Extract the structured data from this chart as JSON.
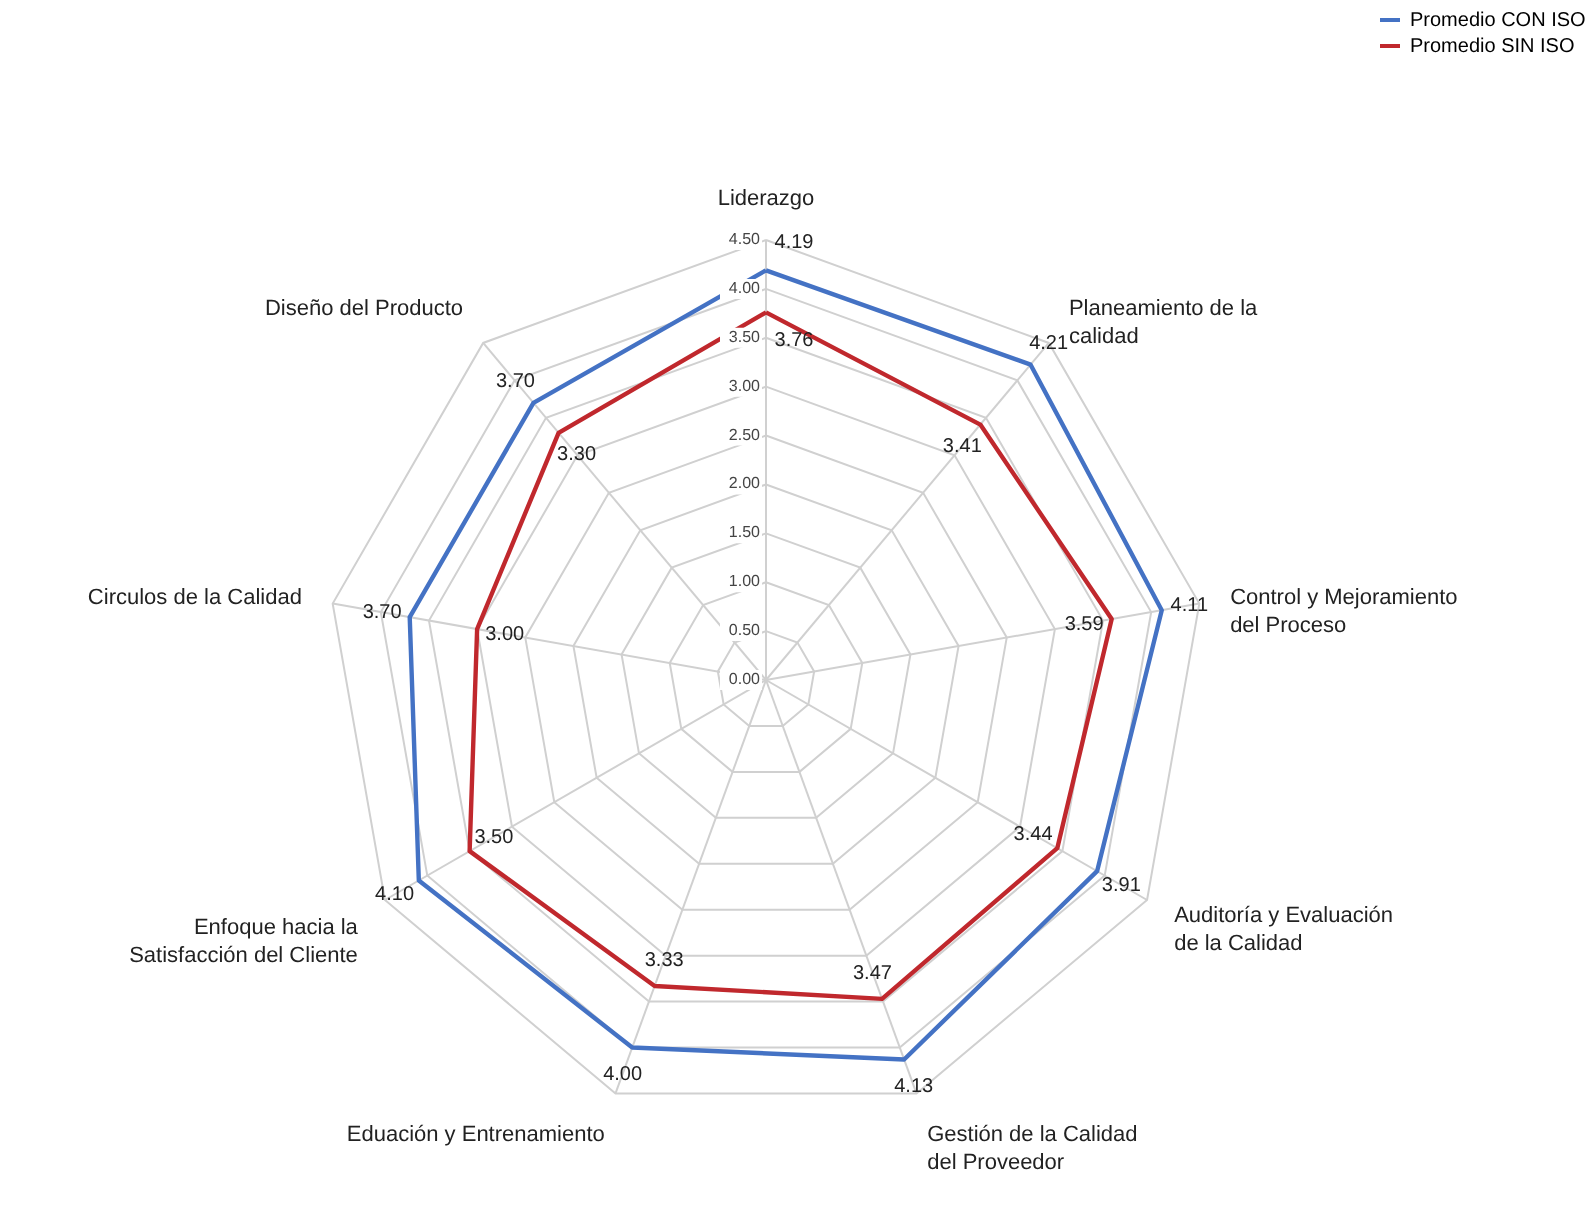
{
  "chart_data": {
    "type": "radar",
    "categories": [
      "Liderazgo",
      "Planeamiento de la calidad",
      "Control y Mejoramiento del Proceso",
      "Auditoría y Evaluación de la Calidad",
      "Gestión de la Calidad del Proveedor",
      "Eduación y Entrenamiento",
      "Enfoque hacia la Satisfacción del Cliente",
      "Circulos de la Calidad",
      "Diseño del Producto"
    ],
    "series": [
      {
        "name": "Promedio CON ISO",
        "color": "#4472c4",
        "values": [
          4.19,
          4.21,
          4.11,
          3.91,
          4.13,
          4.0,
          4.1,
          3.7,
          3.7
        ],
        "value_labels": [
          "4.19",
          "4.21",
          "4.11",
          "3.91",
          "4.13",
          "4.00",
          "4.10",
          "3.70",
          "3.70"
        ]
      },
      {
        "name": "Promedio SIN ISO",
        "color": "#c0282d",
        "values": [
          3.76,
          3.41,
          3.59,
          3.44,
          3.47,
          3.33,
          3.5,
          3.0,
          3.3
        ],
        "value_labels": [
          "3.76",
          "3.41",
          "3.59",
          "3.44",
          "3.47",
          "3.33",
          "3.50",
          "3.00",
          "3.30"
        ]
      }
    ],
    "ylim": [
      0,
      4.5
    ],
    "yticks": [
      {
        "value": 0,
        "label": "0.00"
      },
      {
        "value": 0.5,
        "label": "0.50"
      },
      {
        "value": 1,
        "label": "1.00"
      },
      {
        "value": 1.5,
        "label": "1.50"
      },
      {
        "value": 2,
        "label": "2.00"
      },
      {
        "value": 2.5,
        "label": "2.50"
      },
      {
        "value": 3,
        "label": "3.00"
      },
      {
        "value": 3.5,
        "label": "3.50"
      },
      {
        "value": 4,
        "label": "4.00"
      },
      {
        "value": 4.5,
        "label": "4.50"
      }
    ],
    "grid": true,
    "legend": "top right",
    "marker": "none",
    "line_style": "solid"
  }
}
